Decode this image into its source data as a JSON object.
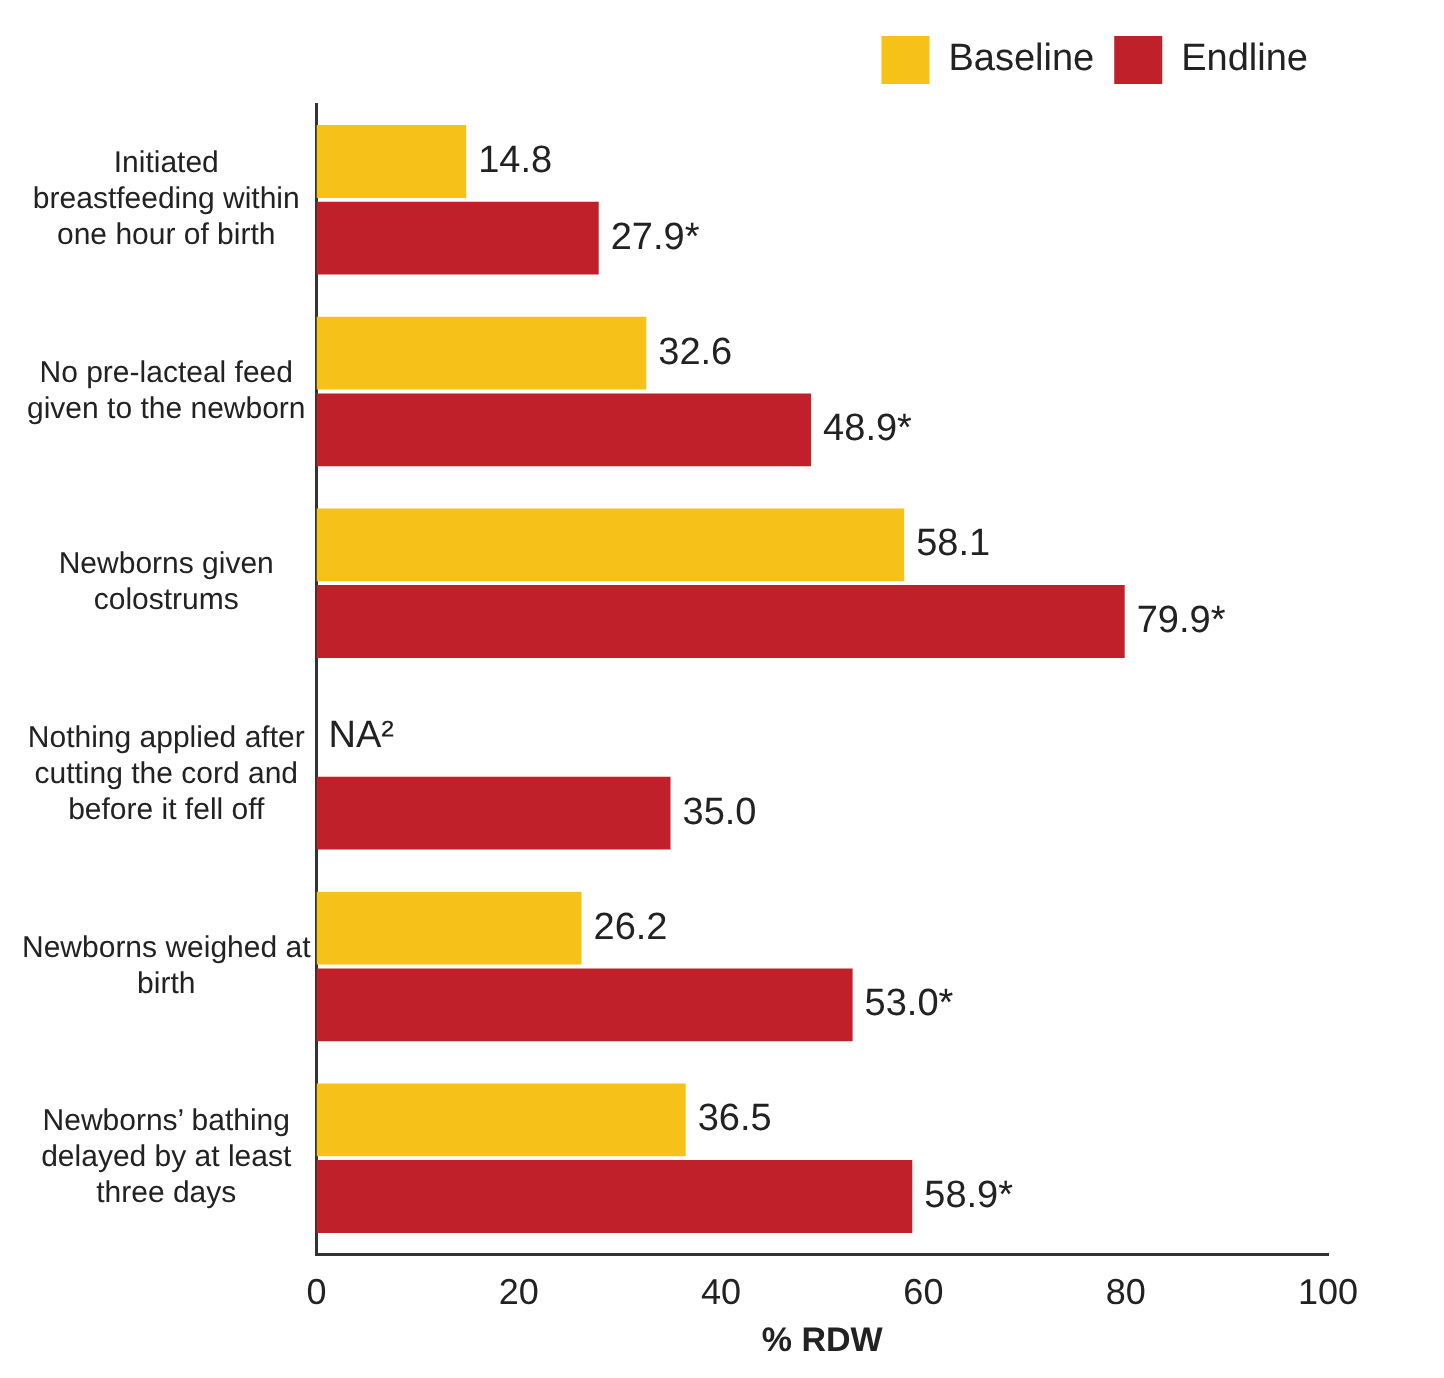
{
  "chart_data": {
    "type": "bar",
    "orientation": "horizontal",
    "categories": [
      "Initiated breastfeeding within one hour of birth",
      "No pre-lacteal feed given to the newborn",
      "Newborns given colostrums",
      "Nothing applied after cutting the cord and before it fell off",
      "Newborns weighed at birth",
      "Newborns’ bathing delayed by at least three days"
    ],
    "series": [
      {
        "name": "Baseline",
        "color": "#f6c21a",
        "values": [
          14.8,
          32.6,
          58.1,
          null,
          26.2,
          36.5
        ],
        "value_labels": [
          "14.8",
          "32.6",
          "58.1",
          "NA²",
          "26.2",
          "36.5"
        ]
      },
      {
        "name": "Endline",
        "color": "#c0202a",
        "values": [
          27.9,
          48.9,
          79.9,
          35.0,
          53.0,
          58.9
        ],
        "value_labels": [
          "27.9*",
          "48.9*",
          "79.9*",
          "35.0",
          "53.0*",
          "58.9*"
        ]
      }
    ],
    "xlabel": "% RDW",
    "xlim": [
      0,
      100
    ],
    "xticks": [
      0,
      20,
      40,
      60,
      80,
      100
    ],
    "grid": false,
    "legend": "top right"
  }
}
